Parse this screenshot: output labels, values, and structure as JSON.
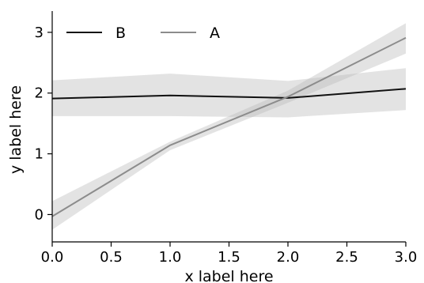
{
  "chart_data": {
    "type": "line",
    "xlabel": "x label here",
    "ylabel": "y label here",
    "xlim": [
      0.0,
      3.0
    ],
    "ylim": [
      -0.45,
      3.35
    ],
    "x_ticks": [
      0.0,
      0.5,
      1.0,
      1.5,
      2.0,
      2.5,
      3.0
    ],
    "x_tick_labels": [
      "0.0",
      "0.5",
      "1.0",
      "1.5",
      "2.0",
      "2.5",
      "3.0"
    ],
    "y_ticks": [
      0,
      1,
      2,
      3
    ],
    "y_tick_labels": [
      "0",
      "1",
      "2",
      "3"
    ],
    "grid": false,
    "legend": "top-left",
    "series": [
      {
        "name": "B",
        "color": "#111111",
        "band_color": "#b8b8b8",
        "x": [
          0,
          1,
          2,
          3
        ],
        "y": [
          1.91,
          1.96,
          1.92,
          2.07
        ],
        "lower": [
          1.62,
          1.62,
          1.6,
          1.72
        ],
        "upper": [
          2.21,
          2.32,
          2.2,
          2.41
        ]
      },
      {
        "name": "A",
        "color": "#8c8c8c",
        "band_color": "#b8b8b8",
        "x": [
          0,
          1,
          2,
          3
        ],
        "y": [
          -0.03,
          1.14,
          1.94,
          2.91
        ],
        "lower": [
          -0.25,
          1.06,
          1.84,
          2.65
        ],
        "upper": [
          0.22,
          1.2,
          2.04,
          3.15
        ]
      }
    ]
  }
}
